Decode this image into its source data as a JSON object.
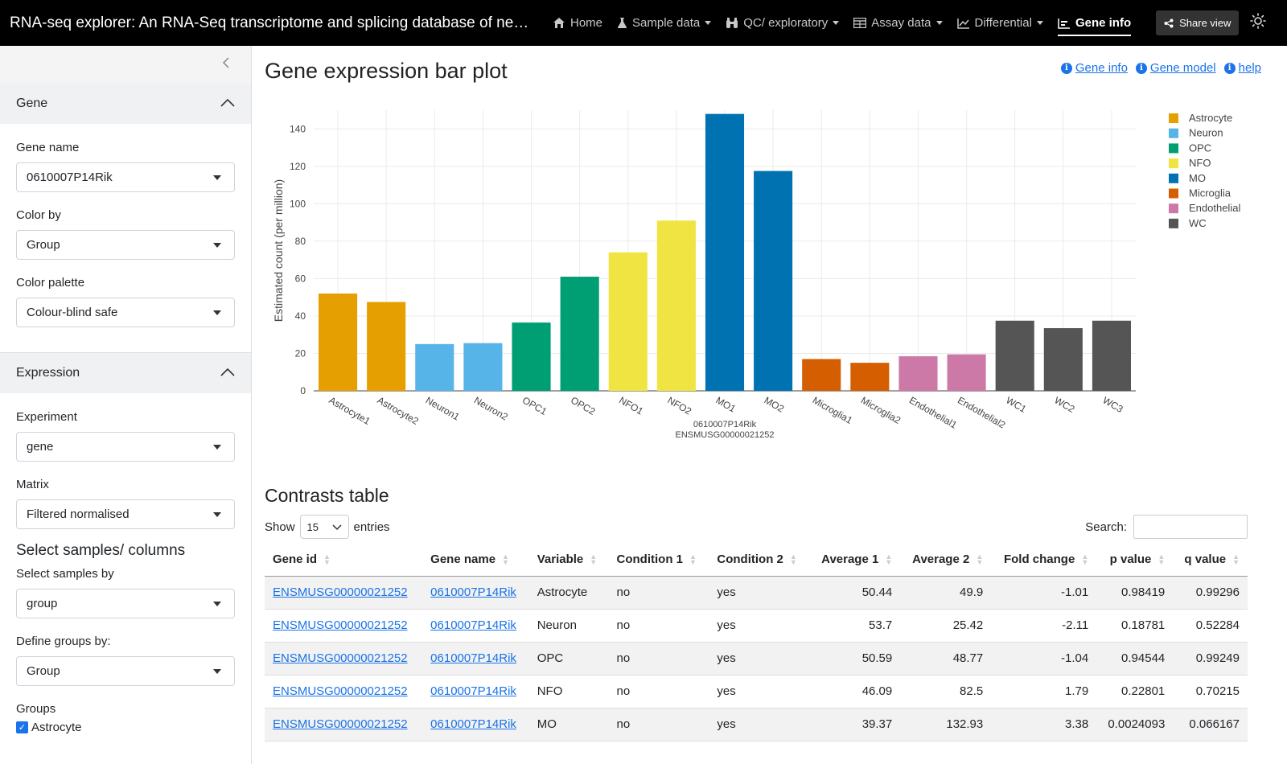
{
  "app_title": "RNA-seq explorer: An RNA-Seq transcriptome and splicing database of neuro…",
  "nav": {
    "items": [
      {
        "label": "Home",
        "icon": "home-icon",
        "dropdown": false
      },
      {
        "label": "Sample data",
        "icon": "flask-icon",
        "dropdown": true
      },
      {
        "label": "QC/ exploratory",
        "icon": "binoculars-icon",
        "dropdown": true
      },
      {
        "label": "Assay data",
        "icon": "table-icon",
        "dropdown": true
      },
      {
        "label": "Differential",
        "icon": "line-chart-icon",
        "dropdown": true
      },
      {
        "label": "Gene info",
        "icon": "bar-chart-icon",
        "dropdown": false,
        "active": true
      }
    ],
    "share_label": "Share view"
  },
  "sidebar": {
    "gene_section": "Gene",
    "gene_name_label": "Gene name",
    "gene_name_value": "0610007P14Rik",
    "color_by_label": "Color by",
    "color_by_value": "Group",
    "color_palette_label": "Color palette",
    "color_palette_value": "Colour-blind safe",
    "expression_section": "Expression",
    "experiment_label": "Experiment",
    "experiment_value": "gene",
    "matrix_label": "Matrix",
    "matrix_value": "Filtered normalised",
    "select_samples_heading": "Select samples/ columns",
    "select_by_label": "Select samples by",
    "select_by_value": "group",
    "define_groups_label": "Define groups by:",
    "define_groups_value": "Group",
    "groups_label": "Groups",
    "groups_first": "Astrocyte"
  },
  "main": {
    "title": "Gene expression bar plot",
    "links": [
      "Gene info",
      "Gene model",
      "help"
    ],
    "contrasts_title": "Contrasts table",
    "show_label": "Show",
    "show_value": "15",
    "entries_label": "entries",
    "search_label": "Search:"
  },
  "chart_data": {
    "type": "bar",
    "ylabel": "Estimated count (per million)",
    "xlabel_line1": "0610007P14Rik",
    "xlabel_line2": "ENSMUSG00000021252",
    "ylim": [
      0,
      150
    ],
    "yticks": [
      0,
      20,
      40,
      60,
      80,
      100,
      120,
      140
    ],
    "grid": true,
    "legend_position": "top-right",
    "categories": [
      "Astrocyte1",
      "Astrocyte2",
      "Neuron1",
      "Neuron2",
      "OPC1",
      "OPC2",
      "NFO1",
      "NFO2",
      "MO1",
      "MO2",
      "Microglia1",
      "Microglia2",
      "Endothelial1",
      "Endothelial2",
      "WC1",
      "WC2",
      "WC3"
    ],
    "groups": [
      "Astrocyte",
      "Astrocyte",
      "Neuron",
      "Neuron",
      "OPC",
      "OPC",
      "NFO",
      "NFO",
      "MO",
      "MO",
      "Microglia",
      "Microglia",
      "Endothelial",
      "Endothelial",
      "WC",
      "WC",
      "WC"
    ],
    "values": [
      52,
      47.5,
      25,
      25.5,
      36.5,
      61,
      74,
      91,
      148,
      117.5,
      17,
      15,
      18.5,
      19.5,
      37.5,
      33.5,
      37.5
    ],
    "legend": [
      {
        "name": "Astrocyte",
        "color": "#E69F00"
      },
      {
        "name": "Neuron",
        "color": "#56B4E9"
      },
      {
        "name": "OPC",
        "color": "#009E73"
      },
      {
        "name": "NFO",
        "color": "#F0E442"
      },
      {
        "name": "MO",
        "color": "#0072B2"
      },
      {
        "name": "Microglia",
        "color": "#D55E00"
      },
      {
        "name": "Endothelial",
        "color": "#CC79A7"
      },
      {
        "name": "WC",
        "color": "#555555"
      }
    ]
  },
  "table": {
    "columns": [
      {
        "label": "Gene id",
        "num": false
      },
      {
        "label": "Gene name",
        "num": false
      },
      {
        "label": "Variable",
        "num": false
      },
      {
        "label": "Condition 1",
        "num": false
      },
      {
        "label": "Condition 2",
        "num": false
      },
      {
        "label": "Average 1",
        "num": true
      },
      {
        "label": "Average 2",
        "num": true
      },
      {
        "label": "Fold change",
        "num": true
      },
      {
        "label": "p value",
        "num": true
      },
      {
        "label": "q value",
        "num": true
      }
    ],
    "rows": [
      [
        "ENSMUSG00000021252",
        "0610007P14Rik",
        "Astrocyte",
        "no",
        "yes",
        "50.44",
        "49.9",
        "-1.01",
        "0.98419",
        "0.99296"
      ],
      [
        "ENSMUSG00000021252",
        "0610007P14Rik",
        "Neuron",
        "no",
        "yes",
        "53.7",
        "25.42",
        "-2.11",
        "0.18781",
        "0.52284"
      ],
      [
        "ENSMUSG00000021252",
        "0610007P14Rik",
        "OPC",
        "no",
        "yes",
        "50.59",
        "48.77",
        "-1.04",
        "0.94544",
        "0.99249"
      ],
      [
        "ENSMUSG00000021252",
        "0610007P14Rik",
        "NFO",
        "no",
        "yes",
        "46.09",
        "82.5",
        "1.79",
        "0.22801",
        "0.70215"
      ],
      [
        "ENSMUSG00000021252",
        "0610007P14Rik",
        "MO",
        "no",
        "yes",
        "39.37",
        "132.93",
        "3.38",
        "0.0024093",
        "0.066167"
      ]
    ]
  }
}
